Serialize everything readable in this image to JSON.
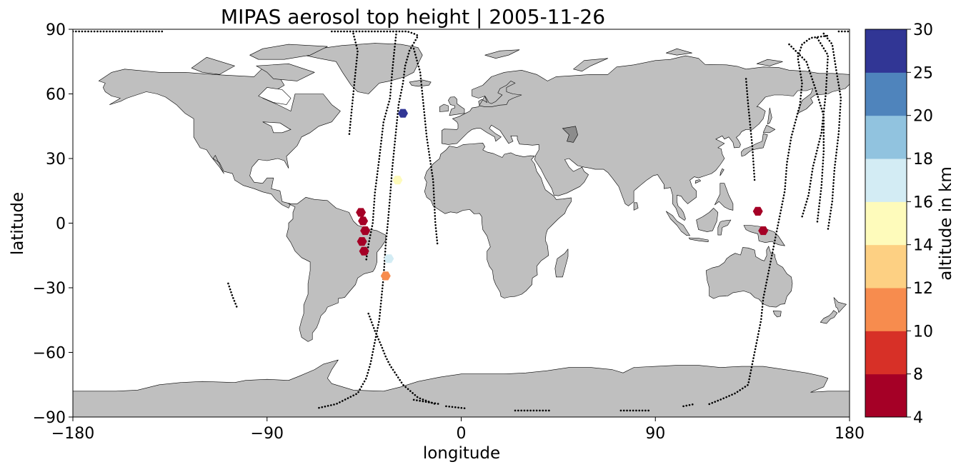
{
  "chart_data": {
    "type": "scatter",
    "title": "MIPAS aerosol top height | 2005-11-26",
    "xlabel": "longitude",
    "ylabel": "latitude",
    "xlim": [
      -180,
      180
    ],
    "ylim": [
      -90,
      90
    ],
    "xticks": [
      -180,
      -90,
      0,
      90,
      180
    ],
    "xtick_labels": [
      "−180",
      "−90",
      "0",
      "90",
      "180"
    ],
    "yticks": [
      -90,
      -60,
      -30,
      0,
      30,
      60,
      90
    ],
    "ytick_labels": [
      "−90",
      "−60",
      "−30",
      "0",
      "30",
      "60",
      "90"
    ],
    "grid": false,
    "land_color": "#bfbfbf",
    "coastline_color": "#000000",
    "colorbar": {
      "label": "altitude in km",
      "boundaries": [
        4,
        8,
        10,
        12,
        14,
        16,
        18,
        20,
        25,
        30
      ],
      "tick_labels": [
        "4",
        "8",
        "10",
        "12",
        "14",
        "16",
        "18",
        "20",
        "25",
        "30"
      ],
      "colors": [
        "#a50026",
        "#d73027",
        "#f46d43",
        "#fdae61",
        "#fee090",
        "#ffffbf",
        "#e0f3f8",
        "#abd9e9",
        "#74add1",
        "#4575b4",
        "#313695"
      ],
      "bin_colors": [
        "#a50026",
        "#d73027",
        "#f78c4e",
        "#fdd083",
        "#fefbbb",
        "#d3ecf4",
        "#91c3df",
        "#4f84bc",
        "#313695"
      ]
    },
    "series": [
      {
        "marker": "hexagon",
        "points": [
          {
            "x": -27,
            "y": 51,
            "altitude_km": 27
          },
          {
            "x": -29.5,
            "y": 20,
            "altitude_km": 15
          },
          {
            "x": -46.5,
            "y": 5,
            "altitude_km": 6
          },
          {
            "x": -45.5,
            "y": 1,
            "altitude_km": 6
          },
          {
            "x": -44.5,
            "y": -3.5,
            "altitude_km": 6
          },
          {
            "x": -46,
            "y": -8.5,
            "altitude_km": 6
          },
          {
            "x": -45,
            "y": -13,
            "altitude_km": 6
          },
          {
            "x": -33.5,
            "y": -16.5,
            "altitude_km": 17
          },
          {
            "x": -35,
            "y": -24.5,
            "altitude_km": 11
          },
          {
            "x": 137.5,
            "y": 5.5,
            "altitude_km": 6
          },
          {
            "x": 140,
            "y": -3.5,
            "altitude_km": 6
          }
        ]
      },
      {
        "marker": "dot",
        "tracks": [
          [
            [
              -180,
              89
            ],
            [
              -165,
              89
            ],
            [
              -152,
              89
            ],
            [
              -142,
              89
            ],
            [
              -138,
              89
            ]
          ],
          [
            [
              -60,
              89
            ],
            [
              -25,
              89
            ],
            [
              -22,
              88
            ],
            [
              -20,
              87
            ],
            [
              -24,
              80
            ],
            [
              -26,
              73
            ],
            [
              -27,
              65
            ],
            [
              -29,
              55
            ],
            [
              -30,
              45
            ],
            [
              -31,
              35
            ],
            [
              -32,
              25
            ],
            [
              -33,
              12
            ],
            [
              -34,
              0
            ],
            [
              -35,
              -10
            ],
            [
              -36,
              -25
            ],
            [
              -37,
              -35
            ],
            [
              -38,
              -45
            ],
            [
              -40,
              -55
            ],
            [
              -42,
              -65
            ],
            [
              -44,
              -72
            ],
            [
              -48,
              -79
            ],
            [
              -58,
              -84
            ],
            [
              -67,
              -86
            ]
          ],
          [
            [
              -30,
              89
            ],
            [
              -31,
              80
            ],
            [
              -32,
              70
            ],
            [
              -33,
              58
            ],
            [
              -36,
              47
            ],
            [
              -38,
              30
            ],
            [
              -40,
              14
            ],
            [
              -41,
              0
            ],
            [
              -43,
              -10
            ],
            [
              -44,
              -17
            ]
          ],
          [
            [
              -50,
              88
            ],
            [
              -48,
              80
            ],
            [
              -49,
              70
            ],
            [
              -50,
              60
            ],
            [
              -51,
              50
            ],
            [
              -52,
              40
            ]
          ],
          [
            [
              -22,
              81
            ],
            [
              -19,
              70
            ],
            [
              -16,
              40
            ],
            [
              -13,
              20
            ],
            [
              -12,
              0
            ],
            [
              -11,
              -10
            ]
          ],
          [
            [
              -43,
              -42
            ],
            [
              -40,
              -50
            ],
            [
              -37,
              -57
            ],
            [
              -35,
              -62
            ],
            [
              -33,
              -66
            ],
            [
              -27,
              -75
            ],
            [
              -20,
              -81
            ],
            [
              -12,
              -84
            ]
          ],
          [
            [
              -108,
              -28
            ],
            [
              -106,
              -34
            ],
            [
              -104,
              -39
            ]
          ],
          [
            [
              -22,
              -82
            ],
            [
              -10,
              -84
            ]
          ],
          [
            [
              -7,
              -85
            ],
            [
              2,
              -86
            ]
          ],
          [
            [
              25,
              -87
            ],
            [
              42,
              -87
            ]
          ],
          [
            [
              74,
              -87
            ],
            [
              87,
              -87
            ]
          ],
          [
            [
              103,
              -85
            ],
            [
              108,
              -84
            ]
          ],
          [
            [
              115,
              -84
            ],
            [
              120,
              -82
            ],
            [
              127,
              -79
            ],
            [
              133,
              -75
            ],
            [
              135,
              -65
            ],
            [
              137,
              -55
            ],
            [
              139,
              -45
            ],
            [
              140,
              -35
            ],
            [
              142,
              -25
            ],
            [
              144,
              -15
            ],
            [
              146,
              -5
            ],
            [
              148,
              5
            ],
            [
              150,
              15
            ],
            [
              151,
              28
            ],
            [
              153,
              40
            ],
            [
              157,
              55
            ],
            [
              158,
              65
            ],
            [
              156,
              77
            ],
            [
              158,
              83
            ],
            [
              162,
              86
            ],
            [
              170,
              87
            ]
          ],
          [
            [
              132,
              67
            ],
            [
              133,
              55
            ],
            [
              134,
              45
            ],
            [
              135,
              35
            ],
            [
              136,
              20
            ]
          ],
          [
            [
              152,
              83
            ],
            [
              160,
              75
            ],
            [
              164,
              63
            ],
            [
              168,
              50
            ],
            [
              168,
              33
            ],
            [
              167,
              17
            ],
            [
              165,
              0
            ]
          ],
          [
            [
              168,
              88
            ],
            [
              172,
              83
            ],
            [
              174,
              70
            ],
            [
              176,
              58
            ],
            [
              175,
              42
            ],
            [
              173,
              25
            ],
            [
              172,
              10
            ],
            [
              170,
              -3
            ]
          ],
          [
            [
              165,
              86
            ],
            [
              170,
              78
            ],
            [
              169,
              60
            ],
            [
              167,
              42
            ],
            [
              163,
              26
            ],
            [
              161,
              13
            ],
            [
              158,
              3
            ]
          ],
          [
            [
              175,
              89
            ],
            [
              180,
              89
            ]
          ]
        ]
      }
    ]
  }
}
